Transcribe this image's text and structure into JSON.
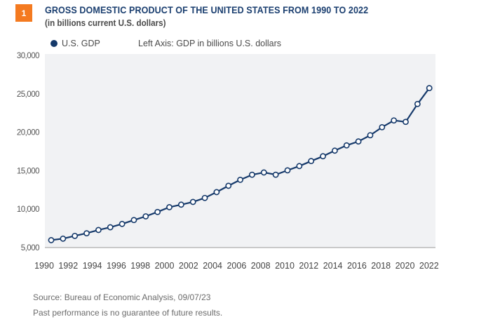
{
  "badge": "1",
  "chart_data": {
    "type": "line",
    "title": "GROSS DOMESTIC PRODUCT OF THE UNITED STATES FROM 1990 TO 2022",
    "subtitle": "(in billions current U.S. dollars)",
    "legend": [
      {
        "name": "U.S. GDP",
        "color": "#15396a"
      }
    ],
    "axis_note": "Left Axis: GDP in billions U.S. dollars",
    "xlabel": "",
    "ylabel": "",
    "ylim": [
      5000,
      30000
    ],
    "yticks": [
      5000,
      10000,
      15000,
      20000,
      25000,
      30000
    ],
    "ytick_labels": [
      "5,000",
      "10,000",
      "15,000",
      "20,000",
      "25,000",
      "30,000"
    ],
    "xticks": [
      1990,
      1992,
      1994,
      1996,
      1998,
      2000,
      2002,
      2004,
      2006,
      2008,
      2010,
      2012,
      2014,
      2016,
      2018,
      2020,
      2022
    ],
    "grid": false,
    "plot_background": "#f1f2f4",
    "series": [
      {
        "name": "U.S. GDP",
        "color": "#15396a",
        "x": [
          1990,
          1991,
          1992,
          1993,
          1994,
          1995,
          1996,
          1997,
          1998,
          1999,
          2000,
          2001,
          2002,
          2003,
          2004,
          2005,
          2006,
          2007,
          2008,
          2009,
          2010,
          2011,
          2012,
          2013,
          2014,
          2015,
          2016,
          2017,
          2018,
          2019,
          2020,
          2021,
          2022
        ],
        "values": [
          5963,
          6158,
          6520,
          6859,
          7287,
          7640,
          8073,
          8578,
          9063,
          9631,
          10251,
          10582,
          10936,
          11458,
          12214,
          13037,
          13815,
          14475,
          14769,
          14478,
          15049,
          15600,
          16254,
          16880,
          17608,
          18295,
          18805,
          19612,
          20656,
          21540,
          21354,
          23681,
          25744
        ]
      }
    ]
  },
  "footer": {
    "source": "Source: Bureau of Economic Analysis,  09/07/23",
    "disclaimer": "Past performance is no guarantee of future results."
  }
}
